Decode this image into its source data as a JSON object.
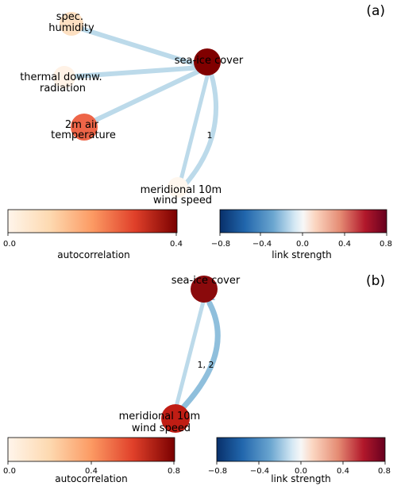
{
  "panel_a": {
    "panel_label": "(a)",
    "nodes": {
      "humidity": {
        "lines": [
          "spec.",
          "humidity"
        ]
      },
      "radiation": {
        "lines": [
          "thermal downw.",
          "radiation"
        ]
      },
      "temperature": {
        "lines": [
          "2m air",
          "temperature"
        ]
      },
      "wind": {
        "lines": [
          "meridional 10m",
          "wind speed"
        ]
      },
      "seaice": {
        "lines": [
          "sea-ice cover"
        ]
      }
    },
    "lag_label": "1",
    "colorbar_autocorrelation": {
      "title": "autocorrelation",
      "ticks": [
        "0.0",
        "0.4"
      ]
    },
    "colorbar_link": {
      "title": "link strength",
      "ticks": [
        "−0.8",
        "−0.4",
        "0.0",
        "0.4",
        "0.8"
      ]
    }
  },
  "panel_b": {
    "panel_label": "(b)",
    "nodes": {
      "seaice": {
        "lines": [
          "sea-ice cover"
        ]
      },
      "wind": {
        "lines": [
          "meridional 10m",
          "wind speed"
        ]
      }
    },
    "lag_label": "1, 2",
    "colorbar_autocorrelation": {
      "title": "autocorrelation",
      "ticks": [
        "0.0",
        "0.4",
        "0.8"
      ]
    },
    "colorbar_link": {
      "title": "link strength",
      "ticks": [
        "−0.8",
        "−0.4",
        "0.0",
        "0.4",
        "0.8"
      ]
    }
  },
  "colors": {
    "node_humidity_a": "#fde0c2",
    "node_radiation_a": "#fff2e6",
    "node_temperature_a": "#ee6548",
    "node_wind_a": "#fff7ee",
    "node_seaice_a": "#800000",
    "node_seaice_b": "#8a0a0c",
    "node_wind_b": "#c01d14",
    "edge_weak": "#bcdaea",
    "edge_medium": "#8fbfdc",
    "border": "#000000"
  }
}
